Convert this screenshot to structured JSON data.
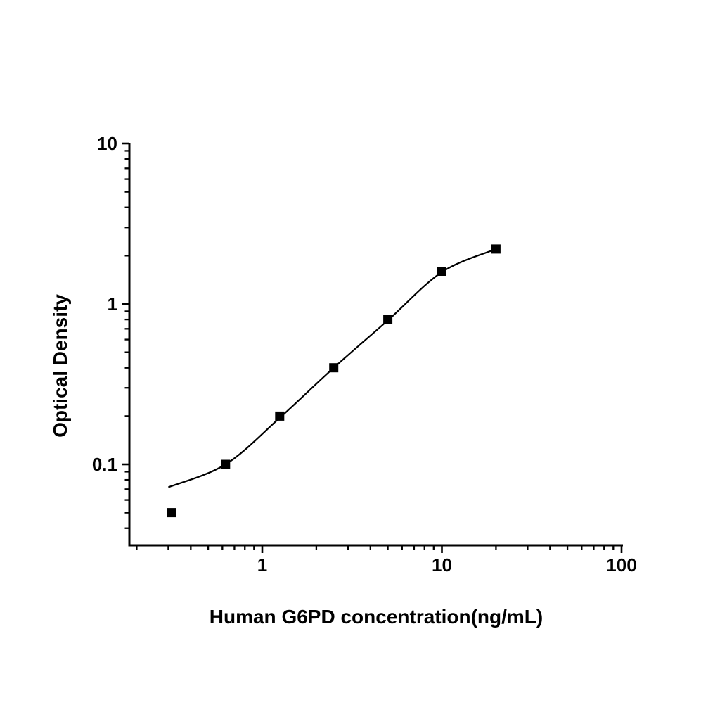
{
  "page": {
    "background": "#ffffff",
    "foreground": "#000000"
  },
  "chart_data": {
    "type": "scatter",
    "title": "",
    "xlabel": "Human G6PD concentration(ng/mL)",
    "ylabel": "Optical Density",
    "x_scale": "log",
    "y_scale": "log",
    "xlim": [
      0.18,
      100
    ],
    "ylim": [
      0.031,
      10
    ],
    "grid": false,
    "legend": false,
    "x_major_ticks": {
      "values": [
        1,
        10,
        100
      ],
      "labels": [
        "1",
        "10",
        "100"
      ]
    },
    "y_major_ticks": {
      "values": [
        10,
        1,
        0.1
      ],
      "labels": [
        "10",
        "1",
        "0.1"
      ]
    },
    "marker_color": "#000000",
    "line_color": "#000000",
    "series": [
      {
        "name": "standard-points",
        "type": "scatter",
        "marker": "filled-square",
        "x": [
          0.3125,
          0.625,
          1.25,
          2.5,
          5,
          10,
          20
        ],
        "y": [
          0.05,
          0.1,
          0.2,
          0.4,
          0.8,
          1.6,
          2.2
        ]
      },
      {
        "name": "fit-curve",
        "type": "line",
        "x": [
          0.3,
          0.625,
          1.25,
          2.5,
          5,
          10,
          20
        ],
        "y": [
          0.072,
          0.1,
          0.195,
          0.4,
          0.79,
          1.58,
          2.2
        ]
      }
    ]
  }
}
